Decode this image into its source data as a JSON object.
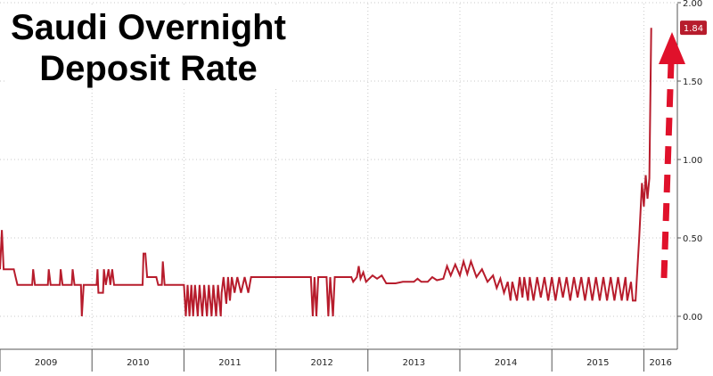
{
  "chart_data": {
    "type": "line",
    "title_line1": "Saudi Overnight",
    "title_line2": "Deposit Rate",
    "xlabel": "",
    "ylabel": "",
    "ylim": [
      -0.03,
      2.0
    ],
    "yticks": [
      "0.00",
      "0.50",
      "1.00",
      "1.50",
      "2.00"
    ],
    "year_labels": [
      "2009",
      "2010",
      "2011",
      "2012",
      "2013",
      "2014",
      "2015",
      "2016"
    ],
    "last_value_label": "1.84",
    "colors": {
      "line": "#b71c2c",
      "arrow": "#e0112b",
      "grid": "#c8c8c8"
    },
    "grid": true,
    "series": [
      {
        "values": [
          [
            2009.0,
            0.3
          ],
          [
            2009.02,
            0.55
          ],
          [
            2009.04,
            0.3
          ],
          [
            2009.15,
            0.3
          ],
          [
            2009.17,
            0.25
          ],
          [
            2009.19,
            0.2
          ],
          [
            2009.35,
            0.2
          ],
          [
            2009.36,
            0.3
          ],
          [
            2009.38,
            0.2
          ],
          [
            2009.52,
            0.2
          ],
          [
            2009.53,
            0.3
          ],
          [
            2009.55,
            0.2
          ],
          [
            2009.65,
            0.2
          ],
          [
            2009.66,
            0.3
          ],
          [
            2009.68,
            0.2
          ],
          [
            2009.78,
            0.2
          ],
          [
            2009.79,
            0.3
          ],
          [
            2009.81,
            0.2
          ],
          [
            2009.88,
            0.2
          ],
          [
            2009.89,
            0.0
          ],
          [
            2009.91,
            0.2
          ],
          [
            2010.05,
            0.2
          ],
          [
            2010.06,
            0.3
          ],
          [
            2010.07,
            0.15
          ],
          [
            2010.12,
            0.15
          ],
          [
            2010.13,
            0.3
          ],
          [
            2010.15,
            0.2
          ],
          [
            2010.18,
            0.3
          ],
          [
            2010.2,
            0.2
          ],
          [
            2010.22,
            0.3
          ],
          [
            2010.24,
            0.2
          ],
          [
            2010.55,
            0.2
          ],
          [
            2010.56,
            0.4
          ],
          [
            2010.58,
            0.4
          ],
          [
            2010.6,
            0.25
          ],
          [
            2010.7,
            0.25
          ],
          [
            2010.72,
            0.2
          ],
          [
            2010.76,
            0.2
          ],
          [
            2010.77,
            0.35
          ],
          [
            2010.79,
            0.2
          ],
          [
            2011.0,
            0.2
          ],
          [
            2011.02,
            0.0
          ],
          [
            2011.04,
            0.2
          ],
          [
            2011.06,
            0.0
          ],
          [
            2011.08,
            0.2
          ],
          [
            2011.1,
            0.0
          ],
          [
            2011.12,
            0.2
          ],
          [
            2011.15,
            0.0
          ],
          [
            2011.17,
            0.2
          ],
          [
            2011.2,
            0.0
          ],
          [
            2011.22,
            0.2
          ],
          [
            2011.25,
            0.0
          ],
          [
            2011.27,
            0.2
          ],
          [
            2011.3,
            0.0
          ],
          [
            2011.32,
            0.2
          ],
          [
            2011.35,
            0.0
          ],
          [
            2011.37,
            0.2
          ],
          [
            2011.4,
            0.0
          ],
          [
            2011.41,
            0.15
          ],
          [
            2011.43,
            0.25
          ],
          [
            2011.46,
            0.08
          ],
          [
            2011.48,
            0.25
          ],
          [
            2011.5,
            0.1
          ],
          [
            2011.52,
            0.25
          ],
          [
            2011.55,
            0.15
          ],
          [
            2011.58,
            0.25
          ],
          [
            2011.62,
            0.15
          ],
          [
            2011.66,
            0.25
          ],
          [
            2011.7,
            0.15
          ],
          [
            2011.73,
            0.25
          ],
          [
            2012.0,
            0.25
          ],
          [
            2012.38,
            0.25
          ],
          [
            2012.4,
            0.0
          ],
          [
            2012.42,
            0.25
          ],
          [
            2012.44,
            0.0
          ],
          [
            2012.46,
            0.25
          ],
          [
            2012.55,
            0.25
          ],
          [
            2012.57,
            0.0
          ],
          [
            2012.59,
            0.25
          ],
          [
            2012.62,
            0.0
          ],
          [
            2012.64,
            0.25
          ],
          [
            2012.82,
            0.25
          ],
          [
            2012.84,
            0.22
          ],
          [
            2012.88,
            0.25
          ],
          [
            2012.9,
            0.32
          ],
          [
            2012.92,
            0.24
          ],
          [
            2012.95,
            0.28
          ],
          [
            2012.98,
            0.22
          ],
          [
            2013.05,
            0.26
          ],
          [
            2013.1,
            0.24
          ],
          [
            2013.15,
            0.26
          ],
          [
            2013.2,
            0.21
          ],
          [
            2013.3,
            0.21
          ],
          [
            2013.38,
            0.22
          ],
          [
            2013.5,
            0.22
          ],
          [
            2013.54,
            0.24
          ],
          [
            2013.58,
            0.22
          ],
          [
            2013.65,
            0.22
          ],
          [
            2013.7,
            0.25
          ],
          [
            2013.75,
            0.23
          ],
          [
            2013.82,
            0.24
          ],
          [
            2013.86,
            0.32
          ],
          [
            2013.9,
            0.26
          ],
          [
            2013.95,
            0.33
          ],
          [
            2014.0,
            0.26
          ],
          [
            2014.04,
            0.35
          ],
          [
            2014.08,
            0.27
          ],
          [
            2014.12,
            0.35
          ],
          [
            2014.18,
            0.25
          ],
          [
            2014.24,
            0.3
          ],
          [
            2014.3,
            0.22
          ],
          [
            2014.36,
            0.26
          ],
          [
            2014.4,
            0.18
          ],
          [
            2014.44,
            0.24
          ],
          [
            2014.48,
            0.15
          ],
          [
            2014.52,
            0.22
          ],
          [
            2014.55,
            0.1
          ],
          [
            2014.57,
            0.22
          ],
          [
            2014.62,
            0.1
          ],
          [
            2014.65,
            0.25
          ],
          [
            2014.68,
            0.12
          ],
          [
            2014.7,
            0.25
          ],
          [
            2014.74,
            0.1
          ],
          [
            2014.76,
            0.25
          ],
          [
            2014.8,
            0.1
          ],
          [
            2014.84,
            0.25
          ],
          [
            2014.88,
            0.12
          ],
          [
            2014.92,
            0.25
          ],
          [
            2014.96,
            0.1
          ],
          [
            2015.0,
            0.25
          ],
          [
            2015.04,
            0.1
          ],
          [
            2015.08,
            0.25
          ],
          [
            2015.12,
            0.12
          ],
          [
            2015.16,
            0.25
          ],
          [
            2015.2,
            0.1
          ],
          [
            2015.24,
            0.25
          ],
          [
            2015.28,
            0.12
          ],
          [
            2015.32,
            0.25
          ],
          [
            2015.36,
            0.1
          ],
          [
            2015.4,
            0.25
          ],
          [
            2015.44,
            0.1
          ],
          [
            2015.48,
            0.25
          ],
          [
            2015.52,
            0.1
          ],
          [
            2015.56,
            0.25
          ],
          [
            2015.6,
            0.1
          ],
          [
            2015.64,
            0.25
          ],
          [
            2015.68,
            0.1
          ],
          [
            2015.72,
            0.25
          ],
          [
            2015.76,
            0.1
          ],
          [
            2015.8,
            0.25
          ],
          [
            2015.82,
            0.1
          ],
          [
            2015.86,
            0.22
          ],
          [
            2015.88,
            0.1
          ],
          [
            2015.91,
            0.1
          ],
          [
            2015.95,
            0.5
          ],
          [
            2015.98,
            0.85
          ],
          [
            2016.0,
            0.7
          ],
          [
            2016.02,
            0.9
          ],
          [
            2016.04,
            0.75
          ],
          [
            2016.06,
            0.88
          ],
          [
            2016.08,
            1.84
          ]
        ]
      }
    ]
  }
}
